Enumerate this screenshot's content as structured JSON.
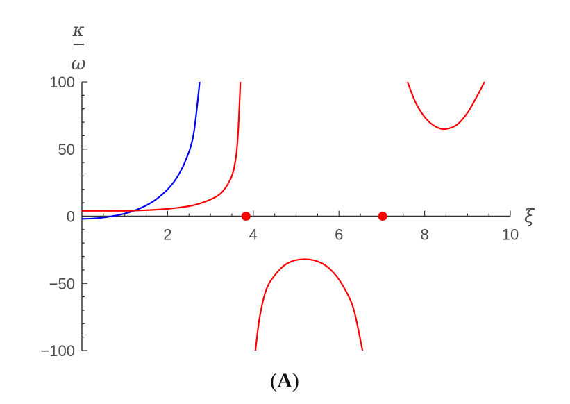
{
  "chart_data": {
    "type": "line",
    "panel_label": {
      "open": "(",
      "letter": "A",
      "close": ")"
    },
    "xlabel": "ξ",
    "ylabel": {
      "numerator": "κ",
      "denominator": "ω"
    },
    "xlim": [
      0,
      10
    ],
    "ylim": [
      -100,
      100
    ],
    "x_ticks": [
      {
        "value": 2,
        "label": "2"
      },
      {
        "value": 4,
        "label": "4"
      },
      {
        "value": 6,
        "label": "6"
      },
      {
        "value": 8,
        "label": "8"
      },
      {
        "value": 10,
        "label": "10"
      }
    ],
    "y_ticks": [
      {
        "value": 100,
        "label": "100"
      },
      {
        "value": 50,
        "label": "50"
      },
      {
        "value": 0,
        "label": "0"
      },
      {
        "value": -50,
        "label": "−50"
      },
      {
        "value": -100,
        "label": "−100"
      }
    ],
    "grid": false,
    "series": [
      {
        "color": "#0000ff",
        "segments": [
          [
            [
              0,
              -2
            ],
            [
              0.25,
              -1.7
            ],
            [
              0.5,
              -1
            ],
            [
              0.75,
              0.3
            ],
            [
              1,
              2
            ],
            [
              1.25,
              4.5
            ],
            [
              1.5,
              8
            ],
            [
              1.75,
              13
            ],
            [
              2,
              20
            ],
            [
              2.2,
              28
            ],
            [
              2.4,
              40
            ],
            [
              2.6,
              60
            ],
            [
              2.75,
              100
            ]
          ]
        ]
      },
      {
        "color": "#ff0000",
        "segments": [
          [
            [
              0,
              4
            ],
            [
              0.5,
              4
            ],
            [
              1,
              4
            ],
            [
              1.5,
              4.5
            ],
            [
              2,
              5.5
            ],
            [
              2.5,
              7.5
            ],
            [
              2.8,
              10
            ],
            [
              3.1,
              14
            ],
            [
              3.3,
              19
            ],
            [
              3.5,
              30
            ],
            [
              3.6,
              45
            ],
            [
              3.65,
              65
            ],
            [
              3.7,
              100
            ]
          ],
          [
            [
              4.05,
              -100
            ],
            [
              4.15,
              -75
            ],
            [
              4.3,
              -55
            ],
            [
              4.5,
              -44
            ],
            [
              4.8,
              -35
            ],
            [
              5.2,
              -32
            ],
            [
              5.6,
              -35
            ],
            [
              5.9,
              -43
            ],
            [
              6.15,
              -55
            ],
            [
              6.35,
              -70
            ],
            [
              6.55,
              -100
            ]
          ],
          [
            [
              7.6,
              100
            ],
            [
              7.8,
              84
            ],
            [
              8.05,
              72
            ],
            [
              8.3,
              66
            ],
            [
              8.5,
              65
            ],
            [
              8.75,
              68
            ],
            [
              9,
              77
            ],
            [
              9.2,
              88
            ],
            [
              9.4,
              100
            ]
          ]
        ]
      }
    ],
    "points": [
      {
        "x": 3.83,
        "y": 0,
        "color": "#ff0000"
      },
      {
        "x": 7.02,
        "y": 0,
        "color": "#ff0000"
      }
    ]
  }
}
